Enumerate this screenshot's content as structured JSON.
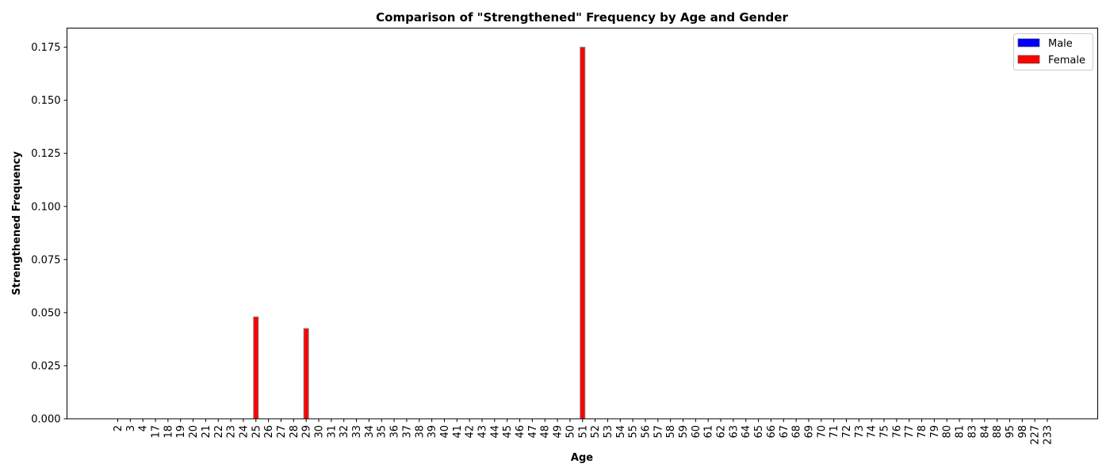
{
  "chart_data": {
    "type": "bar",
    "title": "Comparison of \"Strengthened\" Frequency by Age and Gender",
    "xlabel": "Age",
    "ylabel": "Strengthened Frequency",
    "categories": [
      "2",
      "3",
      "4",
      "17",
      "18",
      "19",
      "20",
      "21",
      "22",
      "23",
      "24",
      "25",
      "26",
      "27",
      "28",
      "29",
      "30",
      "31",
      "32",
      "33",
      "34",
      "35",
      "36",
      "37",
      "38",
      "39",
      "40",
      "41",
      "42",
      "43",
      "44",
      "45",
      "46",
      "47",
      "48",
      "49",
      "50",
      "51",
      "52",
      "53",
      "54",
      "55",
      "56",
      "57",
      "58",
      "59",
      "60",
      "61",
      "62",
      "63",
      "64",
      "65",
      "66",
      "67",
      "68",
      "69",
      "70",
      "71",
      "72",
      "73",
      "74",
      "75",
      "76",
      "77",
      "78",
      "79",
      "80",
      "81",
      "83",
      "84",
      "88",
      "95",
      "98",
      "227",
      "233"
    ],
    "series": [
      {
        "name": "Male",
        "color": "#0000ff",
        "values": [
          0,
          0,
          0,
          0,
          0,
          0,
          0,
          0,
          0,
          0,
          0,
          0,
          0,
          0,
          0,
          0,
          0,
          0,
          0,
          0,
          0,
          0,
          0,
          0,
          0,
          0,
          0,
          0,
          0,
          0,
          0,
          0,
          0,
          0,
          0,
          0,
          0,
          0,
          0,
          0,
          0,
          0,
          0,
          0,
          0,
          0,
          0,
          0,
          0,
          0,
          0,
          0,
          0,
          0,
          0,
          0,
          0,
          0,
          0,
          0,
          0,
          0,
          0,
          0,
          0,
          0,
          0,
          0,
          0,
          0,
          0,
          0,
          0,
          0,
          0
        ]
      },
      {
        "name": "Female",
        "color": "#ff0000",
        "values": [
          0,
          0,
          0,
          0,
          0,
          0,
          0,
          0,
          0,
          0,
          0,
          0.048,
          0,
          0,
          0,
          0.0425,
          0,
          0,
          0,
          0,
          0,
          0,
          0,
          0,
          0,
          0,
          0,
          0,
          0,
          0,
          0,
          0,
          0,
          0,
          0,
          0,
          0,
          0.175,
          0,
          0,
          0,
          0,
          0,
          0,
          0,
          0,
          0,
          0,
          0,
          0,
          0,
          0,
          0,
          0,
          0,
          0,
          0,
          0,
          0,
          0,
          0,
          0,
          0,
          0,
          0,
          0,
          0,
          0,
          0,
          0,
          0,
          0,
          0,
          0,
          0
        ]
      }
    ],
    "ylim": [
      0,
      0.184
    ],
    "yticks": [
      "0.000",
      "0.025",
      "0.050",
      "0.075",
      "0.100",
      "0.125",
      "0.150",
      "0.175"
    ],
    "ytick_values": [
      0,
      0.025,
      0.05,
      0.075,
      0.1,
      0.125,
      0.15,
      0.175
    ],
    "legend_position": "top-right",
    "grid": false
  }
}
